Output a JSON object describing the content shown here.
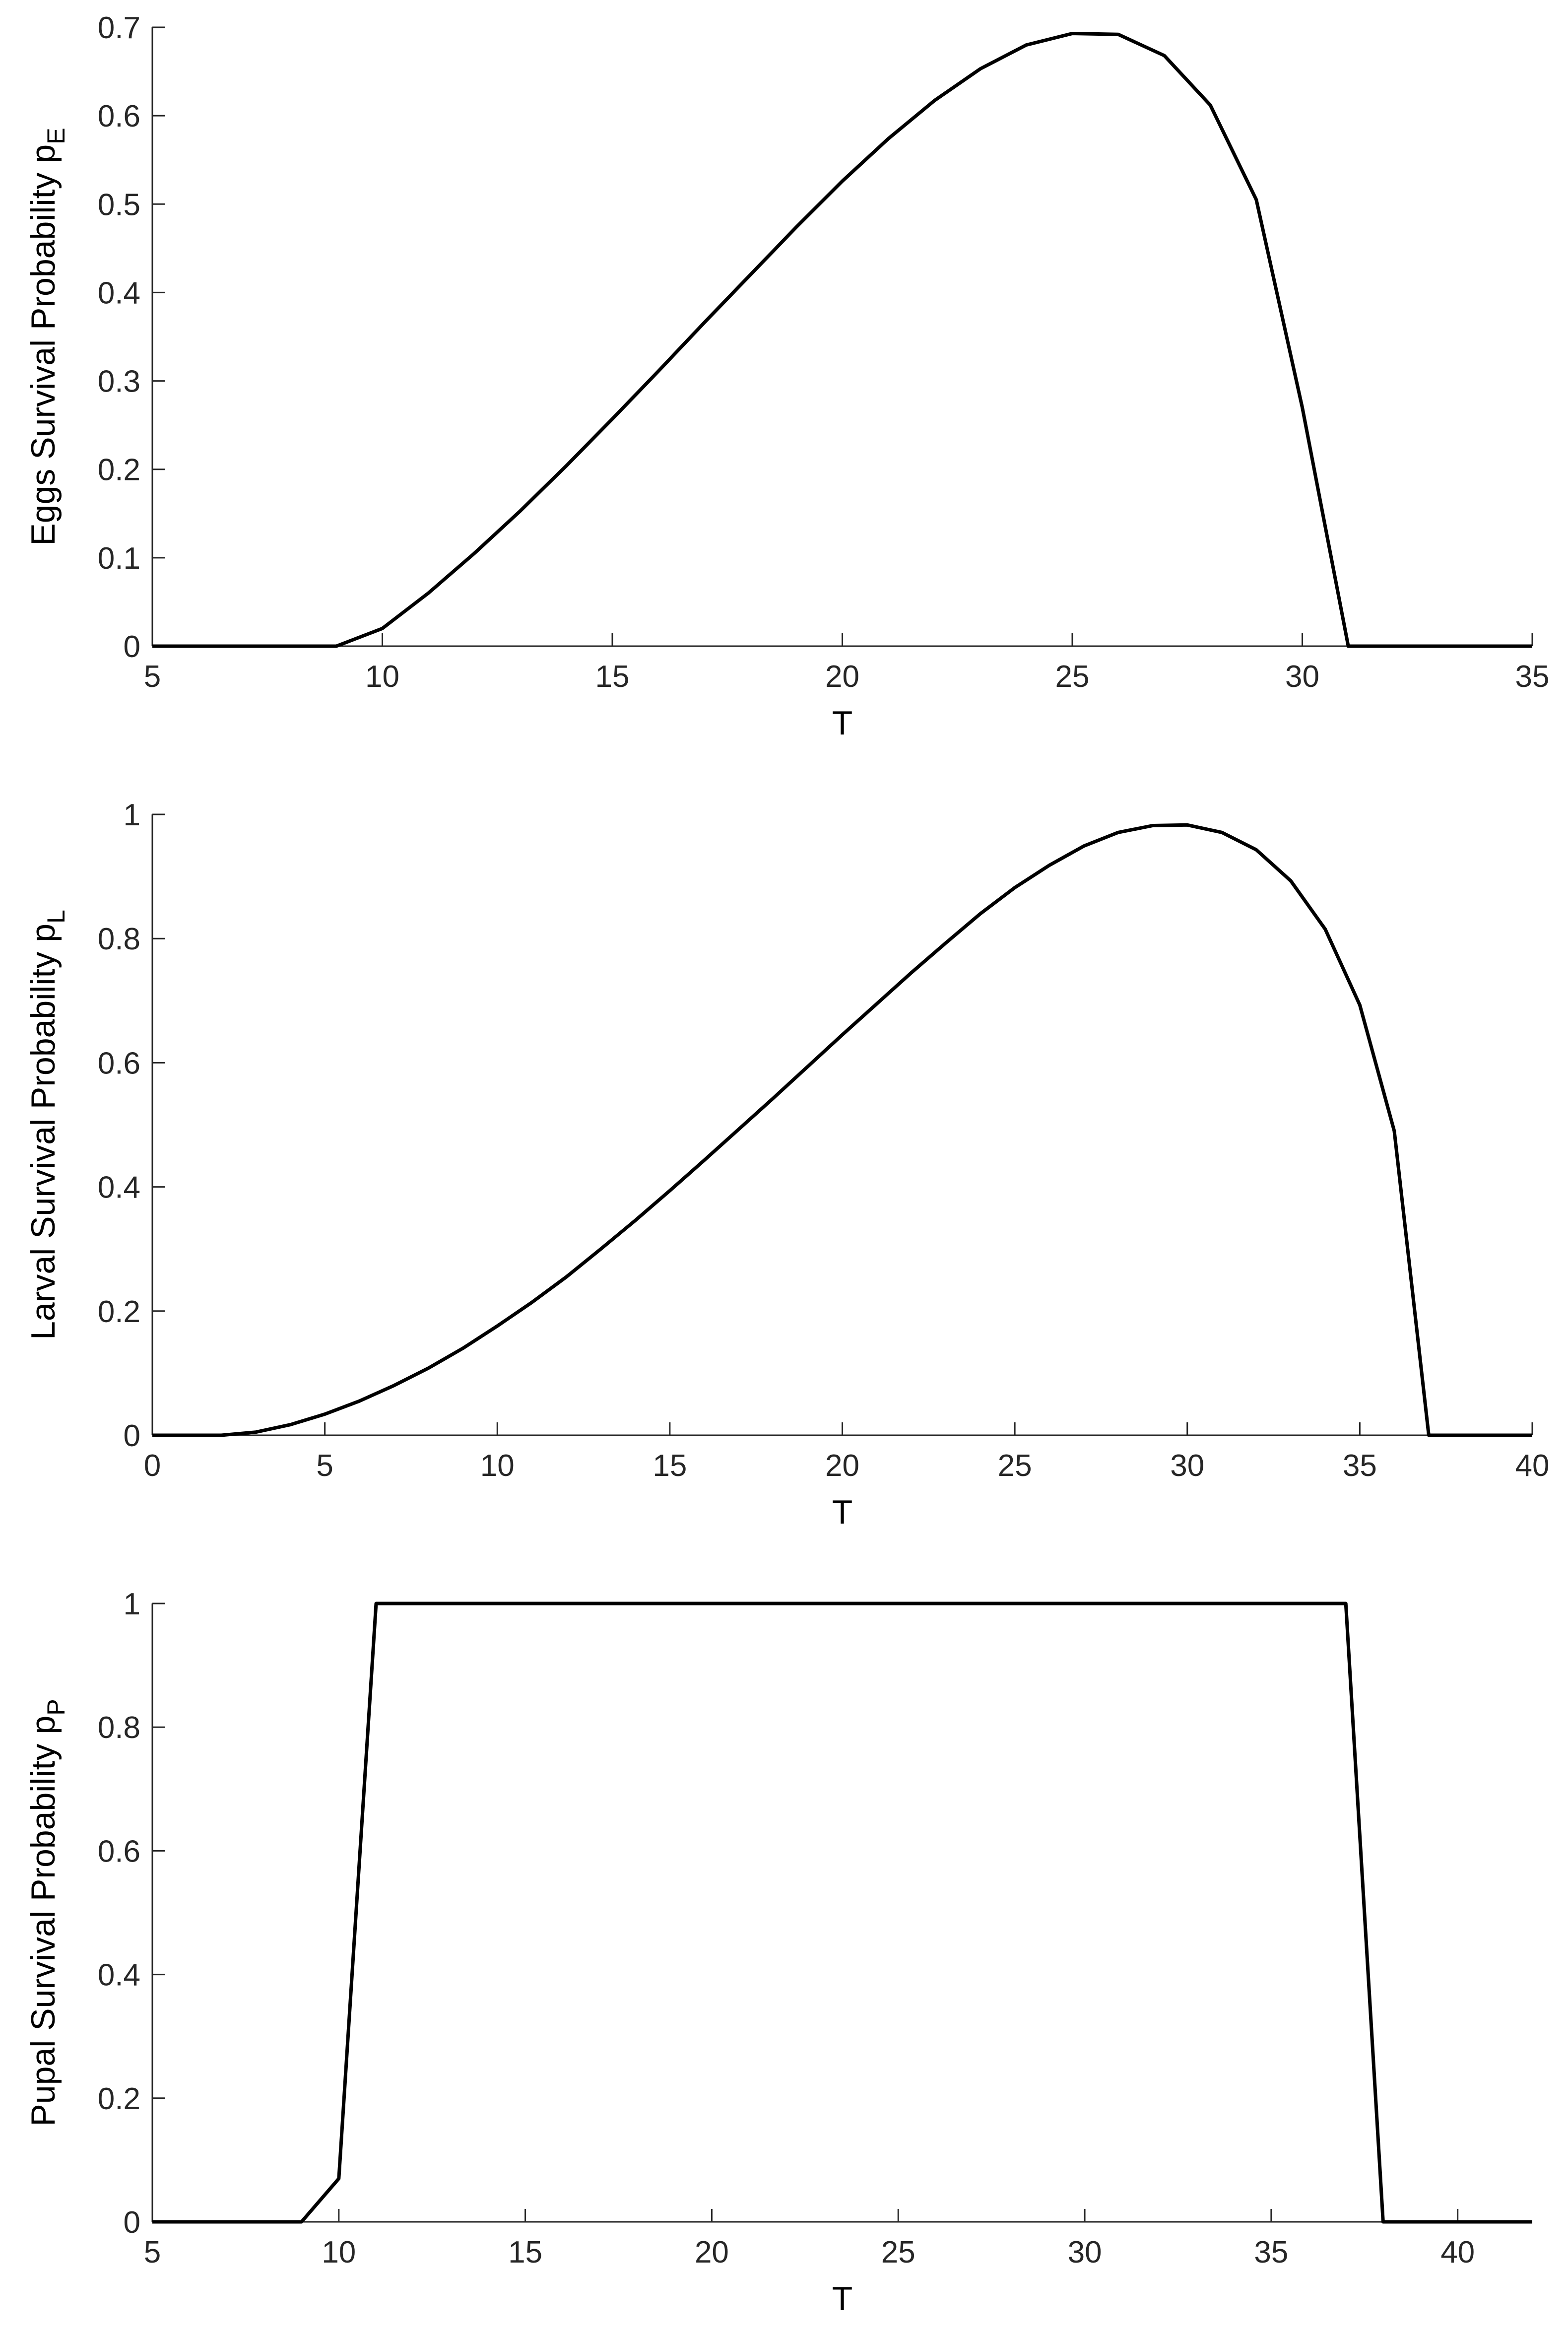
{
  "chart_data": [
    {
      "type": "line",
      "title": "",
      "xlabel": "T",
      "ylabel": "Eggs Survival Probability p",
      "ylabel_subscript": "E",
      "xlim": [
        5,
        35
      ],
      "ylim": [
        0,
        0.7
      ],
      "xticks": [
        5,
        10,
        15,
        20,
        25,
        30,
        35
      ],
      "yticks": [
        0,
        0.1,
        0.2,
        0.3,
        0.4,
        0.5,
        0.6,
        0.7
      ],
      "xtick_labels": [
        "5",
        "10",
        "15",
        "20",
        "25",
        "30",
        "35"
      ],
      "ytick_labels": [
        "0",
        "0.1",
        "0.2",
        "0.3",
        "0.4",
        "0.5",
        "0.6",
        "0.7"
      ],
      "grid": false,
      "x": [
        5,
        6,
        7,
        8,
        9,
        10,
        11,
        12,
        13,
        14,
        15,
        16,
        17,
        18,
        19,
        20,
        21,
        22,
        23,
        24,
        25,
        26,
        27,
        28,
        29,
        30,
        31,
        32,
        33,
        34,
        35
      ],
      "y": [
        0,
        0,
        0,
        0,
        0,
        0.02,
        0.06,
        0.105,
        0.153,
        0.204,
        0.257,
        0.311,
        0.366,
        0.42,
        0.474,
        0.526,
        0.574,
        0.617,
        0.653,
        0.68,
        0.693,
        0.692,
        0.668,
        0.612,
        0.505,
        0.27,
        0,
        0,
        0,
        0,
        0
      ]
    },
    {
      "type": "line",
      "title": "",
      "xlabel": "T",
      "ylabel": "Larval Survival Probability p",
      "ylabel_subscript": "L",
      "xlim": [
        0,
        40
      ],
      "ylim": [
        0,
        1
      ],
      "xticks": [
        0,
        5,
        10,
        15,
        20,
        25,
        30,
        35,
        40
      ],
      "yticks": [
        0,
        0.2,
        0.4,
        0.6,
        0.8,
        1
      ],
      "xtick_labels": [
        "0",
        "5",
        "10",
        "15",
        "20",
        "25",
        "30",
        "35",
        "40"
      ],
      "ytick_labels": [
        "0",
        "0.2",
        "0.4",
        "0.6",
        "0.8",
        "1"
      ],
      "grid": false,
      "x": [
        0,
        1,
        2,
        3,
        4,
        5,
        6,
        7,
        8,
        9,
        10,
        11,
        12,
        13,
        14,
        15,
        16,
        17,
        18,
        19,
        20,
        21,
        22,
        23,
        24,
        25,
        26,
        27,
        28,
        29,
        30,
        31,
        32,
        33,
        34,
        35,
        36,
        37,
        38,
        39,
        40
      ],
      "y": [
        0,
        0,
        0,
        0.005,
        0.017,
        0.034,
        0.055,
        0.08,
        0.108,
        0.14,
        0.176,
        0.214,
        0.255,
        0.3,
        0.346,
        0.394,
        0.443,
        0.493,
        0.543,
        0.594,
        0.645,
        0.695,
        0.745,
        0.793,
        0.84,
        0.882,
        0.918,
        0.949,
        0.971,
        0.982,
        0.983,
        0.971,
        0.943,
        0.893,
        0.815,
        0.693,
        0.49,
        0,
        0,
        0,
        0
      ]
    },
    {
      "type": "line",
      "title": "",
      "xlabel": "T",
      "ylabel": "Pupal Survival Probability p",
      "ylabel_subscript": "P",
      "xlim": [
        5,
        42
      ],
      "ylim": [
        0,
        1
      ],
      "xticks": [
        5,
        10,
        15,
        20,
        25,
        30,
        35,
        40
      ],
      "yticks": [
        0,
        0.2,
        0.4,
        0.6,
        0.8,
        1
      ],
      "xtick_labels": [
        "5",
        "10",
        "15",
        "20",
        "25",
        "30",
        "35",
        "40"
      ],
      "ytick_labels": [
        "0",
        "0.2",
        "0.4",
        "0.6",
        "0.8",
        "1"
      ],
      "grid": false,
      "x": [
        5,
        9,
        10,
        11,
        37,
        38,
        42
      ],
      "y": [
        0,
        0,
        0.07,
        1,
        1,
        0,
        0
      ]
    }
  ]
}
